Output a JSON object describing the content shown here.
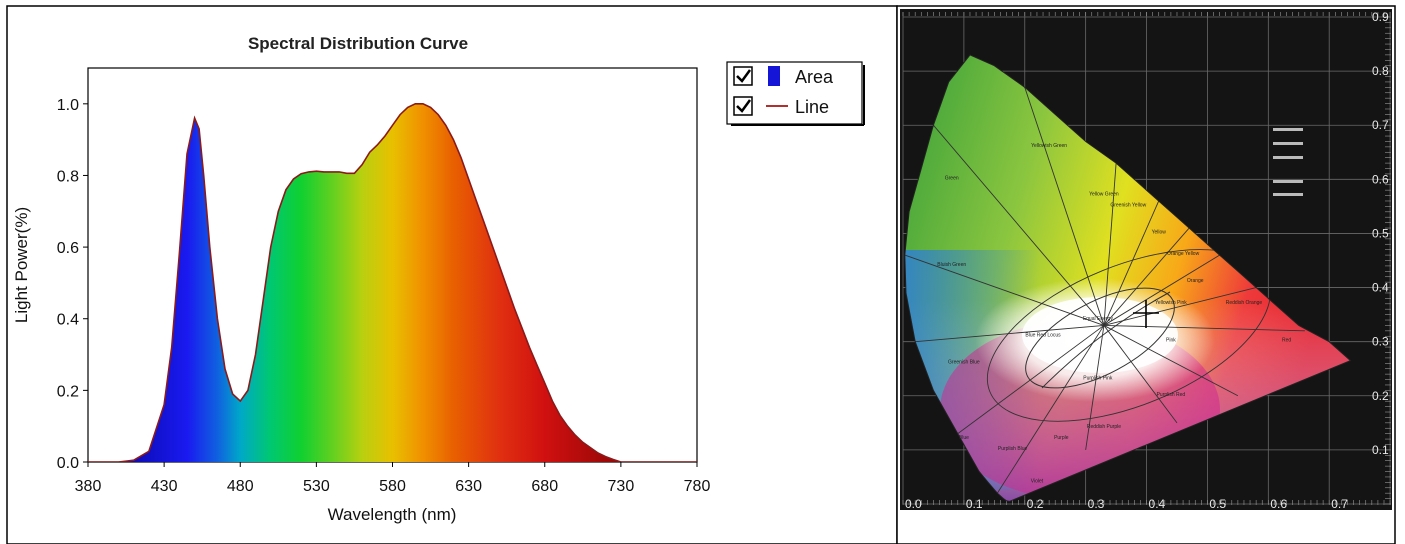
{
  "chart_data": [
    {
      "type": "area",
      "title": "Spectral Distribution Curve",
      "xlabel": "Wavelength  (nm)",
      "ylabel": "Light Power(%)",
      "xlim": [
        380,
        780
      ],
      "ylim": [
        0,
        1.1
      ],
      "xticks": [
        "380",
        "430",
        "480",
        "530",
        "580",
        "630",
        "680",
        "730",
        "780"
      ],
      "yticks": [
        "0.0",
        "0.2",
        "0.4",
        "0.6",
        "0.8",
        "1.0"
      ],
      "legend": {
        "position": "top-right",
        "entries": [
          {
            "label": "Area",
            "checked": true,
            "color": "#1515d8"
          },
          {
            "label": "Line",
            "checked": true,
            "color": "#b03030"
          }
        ]
      },
      "series": [
        {
          "x": [
            380,
            390,
            400,
            410,
            420,
            430,
            435,
            440,
            445,
            450,
            453,
            456,
            460,
            465,
            470,
            475,
            480,
            485,
            490,
            495,
            500,
            505,
            510,
            515,
            520,
            525,
            530,
            535,
            540,
            545,
            550,
            555,
            560,
            565,
            570,
            575,
            580,
            585,
            590,
            595,
            600,
            605,
            610,
            615,
            620,
            625,
            630,
            635,
            640,
            645,
            650,
            655,
            660,
            665,
            670,
            675,
            680,
            685,
            690,
            695,
            700,
            705,
            710,
            715,
            720,
            725,
            730,
            740,
            750,
            760,
            770,
            780
          ],
          "y": [
            0.0,
            0.0,
            0.0,
            0.005,
            0.03,
            0.16,
            0.32,
            0.58,
            0.86,
            0.96,
            0.93,
            0.8,
            0.6,
            0.4,
            0.26,
            0.19,
            0.17,
            0.2,
            0.3,
            0.45,
            0.6,
            0.7,
            0.76,
            0.79,
            0.805,
            0.81,
            0.812,
            0.81,
            0.81,
            0.81,
            0.806,
            0.806,
            0.83,
            0.865,
            0.885,
            0.91,
            0.94,
            0.97,
            0.99,
            1.0,
            1.0,
            0.99,
            0.97,
            0.94,
            0.9,
            0.85,
            0.79,
            0.73,
            0.67,
            0.61,
            0.55,
            0.49,
            0.43,
            0.375,
            0.32,
            0.27,
            0.22,
            0.17,
            0.13,
            0.1,
            0.075,
            0.055,
            0.04,
            0.025,
            0.015,
            0.007,
            0.0,
            0.0,
            0.0,
            0.0,
            0.0,
            0.0
          ]
        }
      ]
    },
    {
      "type": "diagram",
      "xticks": [
        "0.0",
        "0.1",
        "0.2",
        "0.3",
        "0.4",
        "0.5",
        "0.6",
        "0.7"
      ],
      "yticks": [
        "0.1",
        "0.2",
        "0.3",
        "0.4",
        "0.5",
        "0.6",
        "0.7",
        "0.8",
        "0.9"
      ],
      "xlim": [
        0,
        0.8
      ],
      "ylim": [
        0,
        0.9
      ],
      "marker": {
        "x": 0.39,
        "y": 0.36
      },
      "regions": [
        "Green",
        "Yellowish Green",
        "Yellow Green",
        "Greenish Yellow",
        "Yellow",
        "Orange Yellow",
        "Orange",
        "Reddish Orange",
        "Red",
        "Bluish Green",
        "Greenish Blue",
        "Blue",
        "Purplish Blue",
        "Violet",
        "Purple",
        "Reddish Purple",
        "Purplish Red",
        "Purplish Pink",
        "Pink",
        "Yellowish Pink",
        "Equal Energy",
        "Blue Red Locus"
      ]
    }
  ],
  "colors": {
    "background": "#ffffff",
    "cie_background": "#141414",
    "line": "#8b1a1a"
  }
}
